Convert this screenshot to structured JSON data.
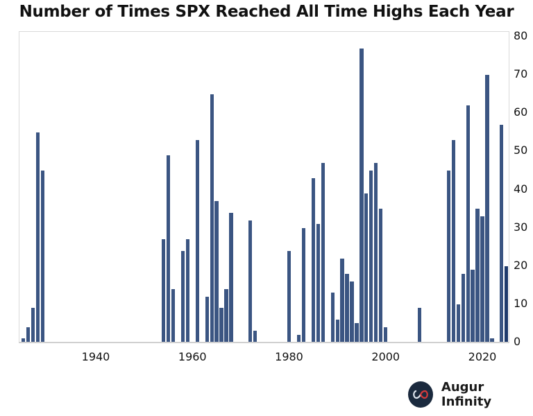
{
  "chart_data": {
    "type": "bar",
    "title": "Number of Times SPX Reached All Time Highs Each Year",
    "xlabel": "",
    "ylabel": "",
    "ylim": [
      0,
      80
    ],
    "yticks": [
      0,
      10,
      20,
      30,
      40,
      50,
      60,
      70,
      80
    ],
    "xticks": [
      1940,
      1960,
      1980,
      2000,
      2020
    ],
    "y_axis_position": "right",
    "grid": false,
    "bar_color": "#3b5582",
    "highlight_color": "#1f3a6b",
    "categories": [
      1925,
      1926,
      1927,
      1928,
      1929,
      1954,
      1955,
      1956,
      1958,
      1959,
      1961,
      1963,
      1964,
      1965,
      1966,
      1967,
      1968,
      1972,
      1973,
      1980,
      1982,
      1983,
      1985,
      1986,
      1987,
      1989,
      1990,
      1991,
      1992,
      1993,
      1994,
      1995,
      1996,
      1997,
      1998,
      1999,
      2000,
      2007,
      2013,
      2014,
      2015,
      2016,
      2017,
      2018,
      2019,
      2020,
      2021,
      2022,
      2024,
      2025
    ],
    "values": [
      1,
      4,
      9,
      55,
      45,
      27,
      49,
      14,
      24,
      27,
      53,
      12,
      65,
      37,
      9,
      14,
      34,
      32,
      3,
      24,
      2,
      30,
      43,
      31,
      47,
      13,
      6,
      22,
      18,
      16,
      5,
      77,
      39,
      45,
      47,
      35,
      4,
      9,
      45,
      53,
      10,
      18,
      62,
      19,
      35,
      33,
      70,
      1,
      57,
      20
    ]
  },
  "header": {
    "title": "Number of Times SPX Reached All Time Highs Each Year"
  },
  "footer": {
    "brand": "Augur Infinity"
  }
}
